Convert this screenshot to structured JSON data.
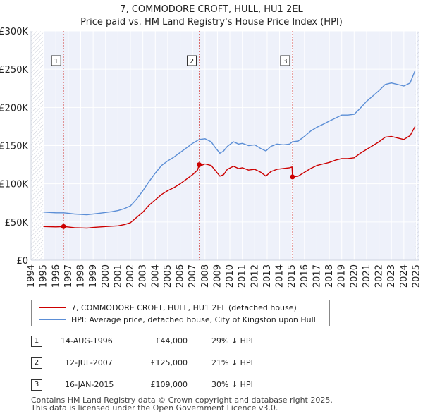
{
  "header": {
    "title": "7, COMMODORE CROFT, HULL, HU1 2EL",
    "subtitle": "Price paid vs. HM Land Registry's House Price Index (HPI)"
  },
  "chart_data": {
    "type": "line",
    "title": "7, COMMODORE CROFT, HULL, HU1 2EL — Price paid vs. HM Land Registry's House Price Index (HPI)",
    "xlim": [
      1994,
      2025.2
    ],
    "ylim": [
      0,
      300000
    ],
    "x_ticks": [
      "1994",
      "1995",
      "1996",
      "1997",
      "1998",
      "1999",
      "2000",
      "2001",
      "2002",
      "2003",
      "2004",
      "2005",
      "2006",
      "2007",
      "2008",
      "2009",
      "2010",
      "2011",
      "2012",
      "2013",
      "2014",
      "2015",
      "2016",
      "2017",
      "2018",
      "2019",
      "2020",
      "2021",
      "2022",
      "2023",
      "2024",
      "2025"
    ],
    "y_ticks": [
      {
        "value": 0,
        "label": "£0"
      },
      {
        "value": 50000,
        "label": "£50K"
      },
      {
        "value": 100000,
        "label": "£100K"
      },
      {
        "value": 150000,
        "label": "£150K"
      },
      {
        "value": 200000,
        "label": "£200K"
      },
      {
        "value": 250000,
        "label": "£250K"
      },
      {
        "value": 300000,
        "label": "£300K"
      }
    ],
    "grid": true,
    "series": [
      {
        "name": "7, COMMODORE CROFT, HULL, HU1 2EL (detached house)",
        "color": "#cc0000",
        "points": [
          [
            1995.0,
            44000
          ],
          [
            1995.5,
            43800
          ],
          [
            1996.0,
            43600
          ],
          [
            1996.62,
            44000
          ],
          [
            1997.0,
            43500
          ],
          [
            1997.5,
            42500
          ],
          [
            1998.0,
            42300
          ],
          [
            1998.5,
            42000
          ],
          [
            1999.0,
            42800
          ],
          [
            1999.5,
            43500
          ],
          [
            2000.0,
            44000
          ],
          [
            2000.5,
            44500
          ],
          [
            2001.0,
            45000
          ],
          [
            2001.5,
            46500
          ],
          [
            2002.0,
            49000
          ],
          [
            2002.5,
            56000
          ],
          [
            2003.0,
            63000
          ],
          [
            2003.5,
            72000
          ],
          [
            2004.0,
            79000
          ],
          [
            2004.5,
            86000
          ],
          [
            2005.0,
            91000
          ],
          [
            2005.5,
            95000
          ],
          [
            2006.0,
            100000
          ],
          [
            2006.5,
            106000
          ],
          [
            2007.0,
            112000
          ],
          [
            2007.4,
            118000
          ],
          [
            2007.53,
            125000
          ],
          [
            2007.7,
            124000
          ],
          [
            2008.0,
            126000
          ],
          [
            2008.5,
            124000
          ],
          [
            2008.8,
            118000
          ],
          [
            2009.2,
            110000
          ],
          [
            2009.5,
            112000
          ],
          [
            2009.8,
            119000
          ],
          [
            2010.3,
            123000
          ],
          [
            2010.7,
            120000
          ],
          [
            2011.0,
            121000
          ],
          [
            2011.5,
            118000
          ],
          [
            2012.0,
            119000
          ],
          [
            2012.5,
            115000
          ],
          [
            2012.9,
            110000
          ],
          [
            2013.3,
            116000
          ],
          [
            2013.8,
            119000
          ],
          [
            2014.3,
            120000
          ],
          [
            2014.8,
            121000
          ],
          [
            2015.0,
            122000
          ],
          [
            2015.04,
            109000
          ],
          [
            2015.5,
            110000
          ],
          [
            2016.0,
            115000
          ],
          [
            2016.5,
            120000
          ],
          [
            2017.0,
            124000
          ],
          [
            2017.5,
            126000
          ],
          [
            2018.0,
            128000
          ],
          [
            2018.5,
            131000
          ],
          [
            2019.0,
            133000
          ],
          [
            2019.5,
            133000
          ],
          [
            2020.0,
            134000
          ],
          [
            2020.5,
            140000
          ],
          [
            2021.0,
            145000
          ],
          [
            2021.5,
            150000
          ],
          [
            2022.0,
            155000
          ],
          [
            2022.5,
            161000
          ],
          [
            2023.0,
            162000
          ],
          [
            2023.5,
            160000
          ],
          [
            2024.0,
            158000
          ],
          [
            2024.5,
            163000
          ],
          [
            2024.9,
            175000
          ]
        ]
      },
      {
        "name": "HPI: Average price, detached house, City of Kingston upon Hull",
        "color": "#5b8ed6",
        "points": [
          [
            1995.0,
            63000
          ],
          [
            1995.5,
            62500
          ],
          [
            1996.0,
            62000
          ],
          [
            1996.62,
            62000
          ],
          [
            1997.0,
            61500
          ],
          [
            1997.5,
            60500
          ],
          [
            1998.0,
            60000
          ],
          [
            1998.5,
            59500
          ],
          [
            1999.0,
            60500
          ],
          [
            1999.5,
            61500
          ],
          [
            2000.0,
            62500
          ],
          [
            2000.5,
            63500
          ],
          [
            2001.0,
            65000
          ],
          [
            2001.5,
            67500
          ],
          [
            2002.0,
            71000
          ],
          [
            2002.5,
            80000
          ],
          [
            2003.0,
            91000
          ],
          [
            2003.5,
            103000
          ],
          [
            2004.0,
            114000
          ],
          [
            2004.5,
            124000
          ],
          [
            2005.0,
            130000
          ],
          [
            2005.5,
            135000
          ],
          [
            2006.0,
            141000
          ],
          [
            2006.5,
            147000
          ],
          [
            2007.0,
            153000
          ],
          [
            2007.53,
            158000
          ],
          [
            2008.0,
            159000
          ],
          [
            2008.5,
            155000
          ],
          [
            2008.8,
            148000
          ],
          [
            2009.2,
            140000
          ],
          [
            2009.5,
            143000
          ],
          [
            2009.8,
            149000
          ],
          [
            2010.3,
            155000
          ],
          [
            2010.7,
            152000
          ],
          [
            2011.0,
            153000
          ],
          [
            2011.5,
            150000
          ],
          [
            2012.0,
            151000
          ],
          [
            2012.5,
            146000
          ],
          [
            2012.9,
            143000
          ],
          [
            2013.3,
            149000
          ],
          [
            2013.8,
            152000
          ],
          [
            2014.3,
            151000
          ],
          [
            2014.8,
            152000
          ],
          [
            2015.04,
            155000
          ],
          [
            2015.5,
            156000
          ],
          [
            2016.0,
            162000
          ],
          [
            2016.5,
            169000
          ],
          [
            2017.0,
            174000
          ],
          [
            2017.5,
            178000
          ],
          [
            2018.0,
            182000
          ],
          [
            2018.5,
            186000
          ],
          [
            2019.0,
            190000
          ],
          [
            2019.5,
            190000
          ],
          [
            2020.0,
            191000
          ],
          [
            2020.5,
            199000
          ],
          [
            2021.0,
            208000
          ],
          [
            2021.5,
            215000
          ],
          [
            2022.0,
            222000
          ],
          [
            2022.5,
            230000
          ],
          [
            2023.0,
            232000
          ],
          [
            2023.5,
            230000
          ],
          [
            2024.0,
            228000
          ],
          [
            2024.5,
            232000
          ],
          [
            2024.9,
            248000
          ]
        ]
      }
    ],
    "markers": [
      {
        "label": "1",
        "x": 1996.62,
        "y": 44000
      },
      {
        "label": "2",
        "x": 2007.53,
        "y": 125000
      },
      {
        "label": "3",
        "x": 2015.04,
        "y": 109000
      }
    ]
  },
  "legend": {
    "property_label": "7, COMMODORE CROFT, HULL, HU1 2EL (detached house)",
    "hpi_label": "HPI: Average price, detached house, City of Kingston upon Hull",
    "property_color": "#cc0000",
    "hpi_color": "#5b8ed6"
  },
  "transactions": [
    {
      "num": "1",
      "date": "14-AUG-1996",
      "price": "£44,000",
      "hpi": "29% ↓ HPI"
    },
    {
      "num": "2",
      "date": "12-JUL-2007",
      "price": "£125,000",
      "hpi": "21% ↓ HPI"
    },
    {
      "num": "3",
      "date": "16-JAN-2015",
      "price": "£109,000",
      "hpi": "30% ↓ HPI"
    }
  ],
  "footer": {
    "line1": "Contains HM Land Registry data © Crown copyright and database right 2025.",
    "line2": "This data is licensed under the Open Government Licence v3.0."
  }
}
